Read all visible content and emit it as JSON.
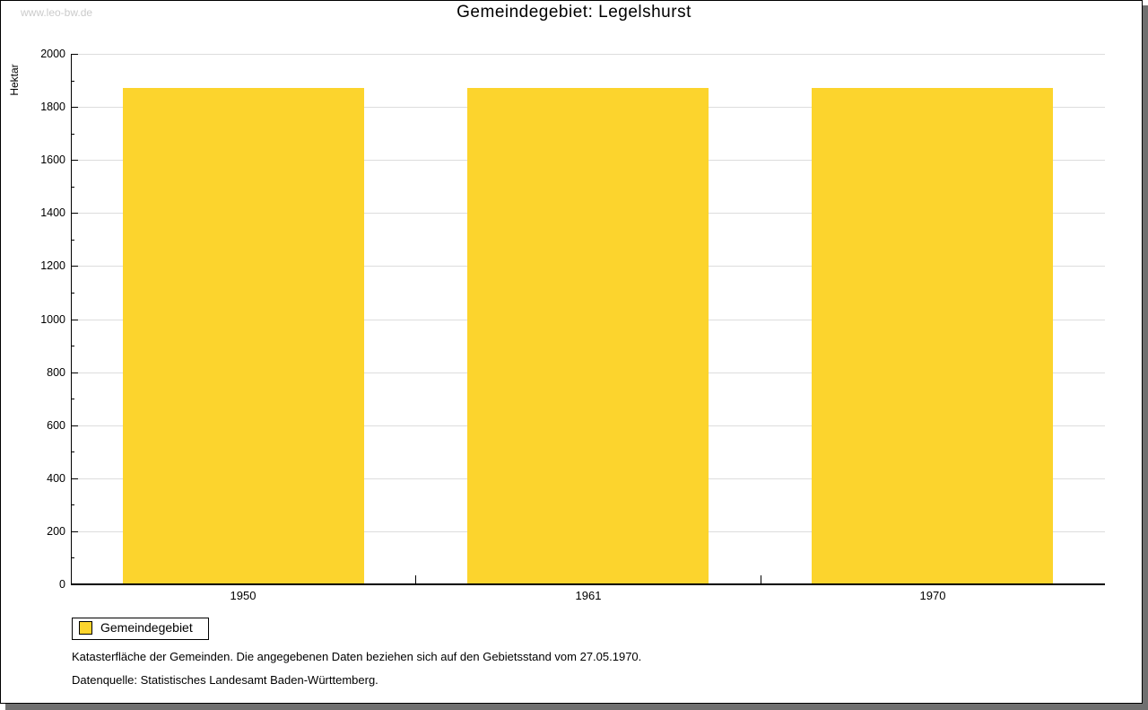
{
  "watermark": "www.leo-bw.de",
  "title": "Gemeindegebiet: Legelshurst",
  "legend": {
    "label": "Gemeindegebiet",
    "swatch_color": "#fcd42d"
  },
  "footnotes": {
    "line1": "Katasterfläche der Gemeinden. Die angegebenen Daten beziehen sich auf den Gebietsstand vom 27.05.1970.",
    "line2": "Datenquelle: Statistisches Landesamt Baden-Württemberg."
  },
  "chart_data": {
    "type": "bar",
    "title": "Gemeindegebiet: Legelshurst",
    "categories": [
      "1950",
      "1961",
      "1970"
    ],
    "series": [
      {
        "name": "Gemeindegebiet",
        "values": [
          1872,
          1872,
          1872
        ]
      }
    ],
    "values": [
      1872,
      1872,
      1872
    ],
    "xlabel": "",
    "ylabel": "Hektar",
    "ylim": [
      0,
      2000
    ],
    "y_major_tick": 200,
    "y_minor_tick": 100,
    "grid": true,
    "legend_position": "bottom-left",
    "bar_color": "#fcd42d",
    "grid_color": "#dddddd",
    "axis_color": "#000000"
  }
}
